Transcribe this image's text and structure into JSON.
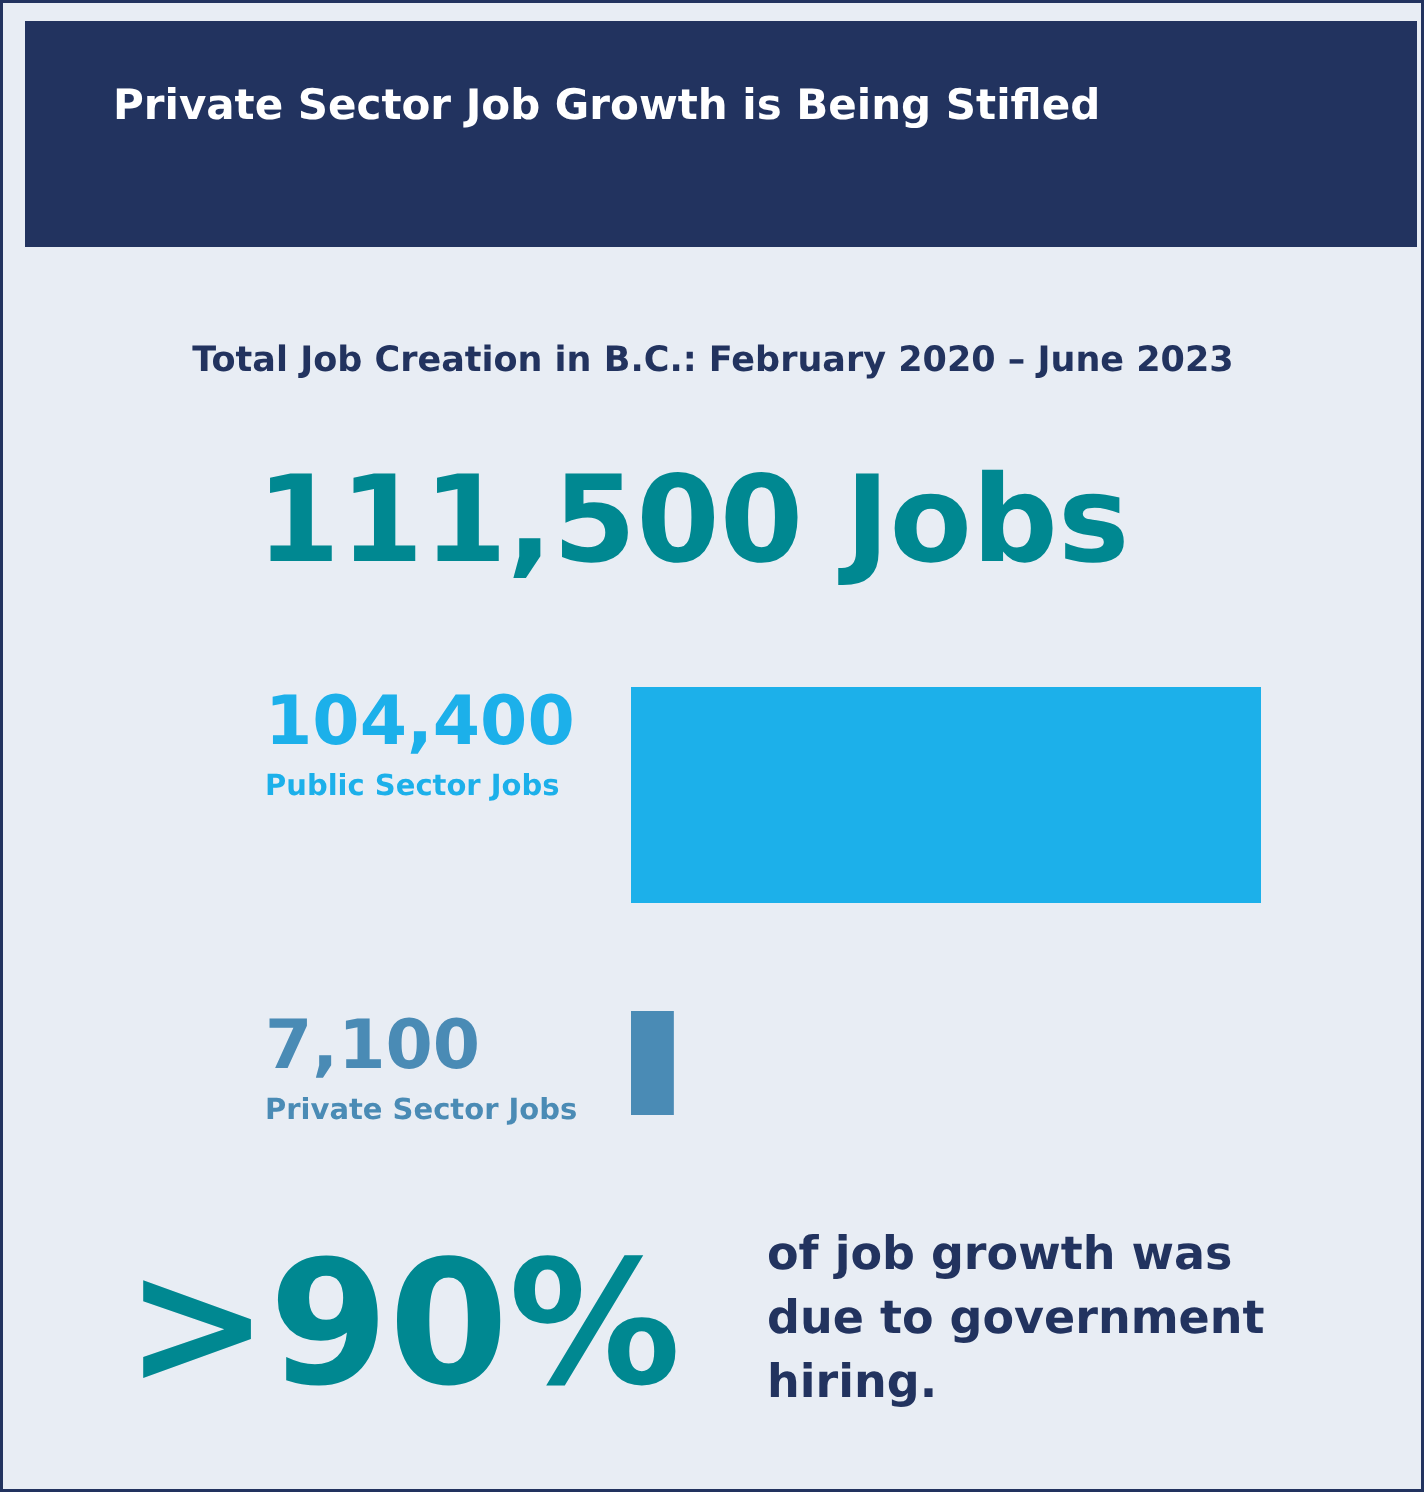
{
  "chart_data": {
    "type": "bar",
    "orientation": "horizontal",
    "title": "Private Sector Job Growth is Being Stifled",
    "subtitle": "Total Job Creation in B.C.: February 2020 – June 2023",
    "categories": [
      "Public Sector Jobs",
      "Private Sector Jobs"
    ],
    "values": [
      104400,
      7100
    ],
    "value_labels": [
      "104,400",
      "7,100"
    ],
    "colors": [
      "#1cb0ea",
      "#4a8bb5"
    ],
    "tick_labels": false,
    "annotations": [
      "111,500 Jobs",
      ">90%",
      "of job growth was due to government hiring."
    ]
  }
}
